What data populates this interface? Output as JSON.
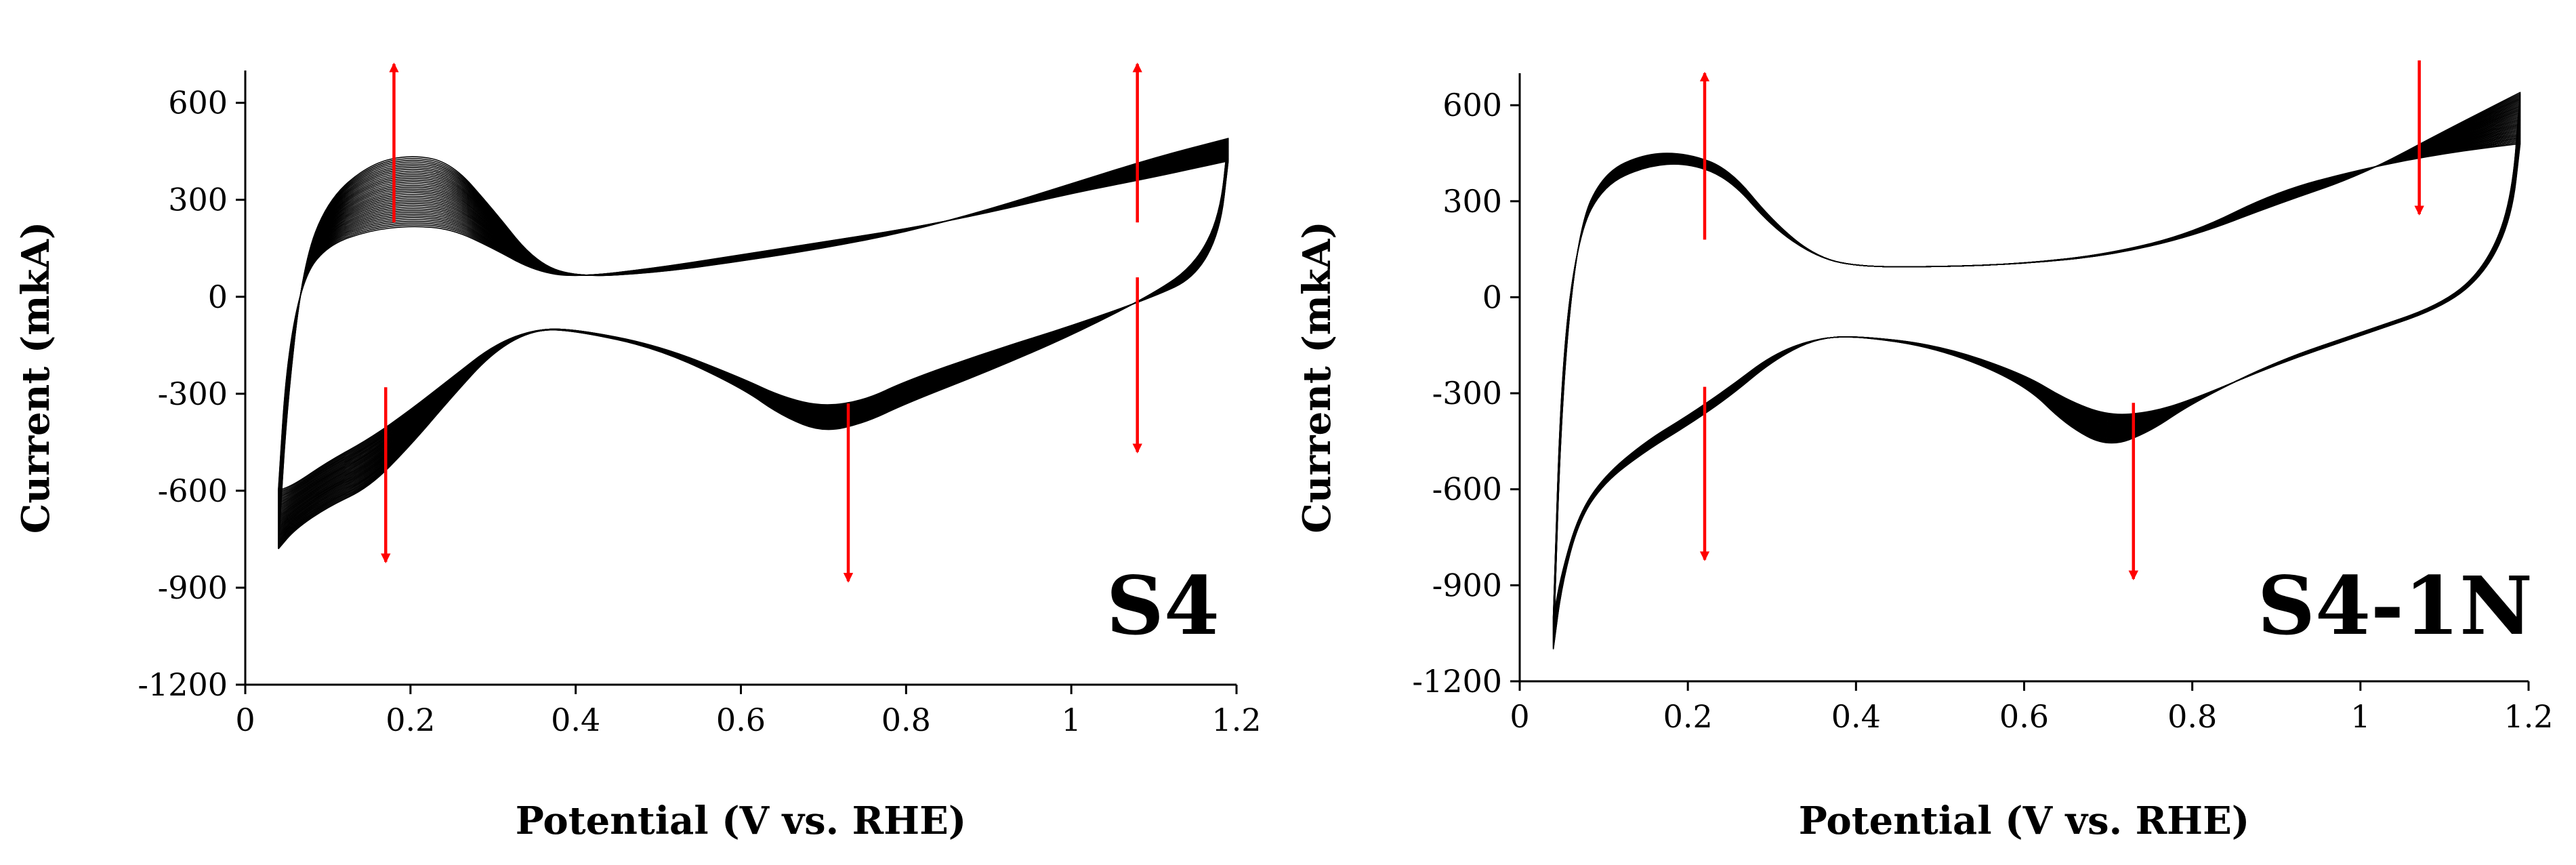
{
  "chart_data": [
    {
      "type": "line",
      "label": "S4",
      "xlabel": "Potential (V vs. RHE)",
      "ylabel": "Current (mkA)",
      "xlim": [
        0,
        1.2
      ],
      "ylim": [
        -1200,
        700
      ],
      "x_ticks": [
        0,
        0.2,
        0.4,
        0.6,
        0.8,
        1,
        1.2
      ],
      "x_tick_labels": [
        "0",
        "0.2",
        "0.4",
        "0.6",
        "0.8",
        "1",
        "1.2"
      ],
      "y_ticks": [
        600,
        300,
        0,
        -300,
        -600,
        -900,
        -1200
      ],
      "y_tick_labels": [
        "600",
        "300",
        "0",
        "-300",
        "-600",
        "-900",
        "-1200"
      ],
      "grid": false,
      "cycles": 40,
      "cycle_band": {
        "first": {
          "anodic": [
            [
              0.04,
              -600
            ],
            [
              0.05,
              -200
            ],
            [
              0.07,
              60
            ],
            [
              0.1,
              160
            ],
            [
              0.15,
              205
            ],
            [
              0.2,
              220
            ],
            [
              0.25,
              210
            ],
            [
              0.3,
              150
            ],
            [
              0.35,
              80
            ],
            [
              0.4,
              60
            ],
            [
              0.5,
              90
            ],
            [
              0.6,
              130
            ],
            [
              0.7,
              170
            ],
            [
              0.8,
              210
            ],
            [
              0.9,
              260
            ],
            [
              1.0,
              320
            ],
            [
              1.1,
              370
            ],
            [
              1.19,
              420
            ]
          ],
          "cathodic": [
            [
              1.19,
              420
            ],
            [
              1.18,
              200
            ],
            [
              1.15,
              60
            ],
            [
              1.1,
              0
            ],
            [
              1.0,
              -90
            ],
            [
              0.9,
              -170
            ],
            [
              0.8,
              -260
            ],
            [
              0.75,
              -320
            ],
            [
              0.7,
              -340
            ],
            [
              0.65,
              -310
            ],
            [
              0.6,
              -250
            ],
            [
              0.5,
              -150
            ],
            [
              0.4,
              -100
            ],
            [
              0.35,
              -100
            ],
            [
              0.3,
              -150
            ],
            [
              0.25,
              -250
            ],
            [
              0.2,
              -350
            ],
            [
              0.15,
              -440
            ],
            [
              0.1,
              -510
            ],
            [
              0.06,
              -580
            ],
            [
              0.04,
              -600
            ]
          ]
        },
        "last": {
          "anodic": [
            [
              0.04,
              -780
            ],
            [
              0.05,
              -350
            ],
            [
              0.07,
              100
            ],
            [
              0.1,
              300
            ],
            [
              0.15,
              410
            ],
            [
              0.2,
              440
            ],
            [
              0.25,
              415
            ],
            [
              0.3,
              270
            ],
            [
              0.35,
              110
            ],
            [
              0.4,
              60
            ],
            [
              0.5,
              75
            ],
            [
              0.6,
              110
            ],
            [
              0.7,
              150
            ],
            [
              0.8,
              200
            ],
            [
              0.9,
              270
            ],
            [
              1.0,
              350
            ],
            [
              1.1,
              430
            ],
            [
              1.19,
              490
            ]
          ],
          "cathodic": [
            [
              1.19,
              490
            ],
            [
              1.18,
              250
            ],
            [
              1.15,
              100
            ],
            [
              1.1,
              10
            ],
            [
              1.0,
              -120
            ],
            [
              0.9,
              -230
            ],
            [
              0.8,
              -330
            ],
            [
              0.75,
              -390
            ],
            [
              0.7,
              -420
            ],
            [
              0.65,
              -370
            ],
            [
              0.6,
              -280
            ],
            [
              0.5,
              -160
            ],
            [
              0.4,
              -105
            ],
            [
              0.35,
              -100
            ],
            [
              0.3,
              -170
            ],
            [
              0.25,
              -310
            ],
            [
              0.2,
              -460
            ],
            [
              0.15,
              -590
            ],
            [
              0.1,
              -650
            ],
            [
              0.06,
              -720
            ],
            [
              0.04,
              -780
            ]
          ]
        }
      },
      "arrows": [
        {
          "x": 0.18,
          "from": 230,
          "to": 720
        },
        {
          "x": 1.08,
          "from": 230,
          "to": 720
        },
        {
          "x": 0.17,
          "from": -280,
          "to": -820
        },
        {
          "x": 0.73,
          "from": -330,
          "to": -880
        },
        {
          "x": 1.08,
          "from": 60,
          "to": -480
        }
      ],
      "arrow_color": "#ff0000",
      "line_color": "#000000"
    },
    {
      "type": "line",
      "label": "S4-1N",
      "xlabel": "Potential (V vs. RHE)",
      "ylabel": "Current (mkA)",
      "xlim": [
        0,
        1.2
      ],
      "ylim": [
        -1200,
        700
      ],
      "x_ticks": [
        0,
        0.2,
        0.4,
        0.6,
        0.8,
        1,
        1.2
      ],
      "x_tick_labels": [
        "0",
        "0.2",
        "0.4",
        "0.6",
        "0.8",
        "1",
        "1.2"
      ],
      "y_ticks": [
        600,
        300,
        0,
        -300,
        -600,
        -900,
        -1200
      ],
      "y_tick_labels": [
        "600",
        "300",
        "0",
        "-300",
        "-600",
        "-900",
        "-1200"
      ],
      "grid": false,
      "cycles": 40,
      "cycle_band": {
        "first": {
          "anodic": [
            [
              0.04,
              -1000
            ],
            [
              0.05,
              -200
            ],
            [
              0.07,
              200
            ],
            [
              0.1,
              350
            ],
            [
              0.15,
              410
            ],
            [
              0.2,
              420
            ],
            [
              0.25,
              370
            ],
            [
              0.3,
              220
            ],
            [
              0.35,
              130
            ],
            [
              0.4,
              95
            ],
            [
              0.5,
              95
            ],
            [
              0.6,
              105
            ],
            [
              0.7,
              135
            ],
            [
              0.8,
              200
            ],
            [
              0.9,
              330
            ],
            [
              1.0,
              400
            ],
            [
              1.1,
              450
            ],
            [
              1.19,
              480
            ]
          ],
          "cathodic": [
            [
              1.19,
              480
            ],
            [
              1.18,
              250
            ],
            [
              1.15,
              80
            ],
            [
              1.1,
              -30
            ],
            [
              1.0,
              -120
            ],
            [
              0.9,
              -210
            ],
            [
              0.8,
              -320
            ],
            [
              0.75,
              -360
            ],
            [
              0.7,
              -370
            ],
            [
              0.65,
              -320
            ],
            [
              0.6,
              -240
            ],
            [
              0.5,
              -150
            ],
            [
              0.4,
              -120
            ],
            [
              0.35,
              -130
            ],
            [
              0.3,
              -180
            ],
            [
              0.25,
              -280
            ],
            [
              0.2,
              -370
            ],
            [
              0.15,
              -450
            ],
            [
              0.1,
              -560
            ],
            [
              0.07,
              -680
            ],
            [
              0.05,
              -860
            ],
            [
              0.04,
              -1000
            ]
          ]
        },
        "last": {
          "anodic": [
            [
              0.04,
              -1100
            ],
            [
              0.05,
              -300
            ],
            [
              0.07,
              220
            ],
            [
              0.1,
              390
            ],
            [
              0.15,
              450
            ],
            [
              0.2,
              450
            ],
            [
              0.25,
              400
            ],
            [
              0.3,
              240
            ],
            [
              0.35,
              130
            ],
            [
              0.4,
              95
            ],
            [
              0.5,
              95
            ],
            [
              0.6,
              105
            ],
            [
              0.7,
              130
            ],
            [
              0.8,
              190
            ],
            [
              0.9,
              290
            ],
            [
              1.0,
              380
            ],
            [
              1.1,
              520
            ],
            [
              1.19,
              640
            ]
          ],
          "cathodic": [
            [
              1.19,
              640
            ],
            [
              1.18,
              300
            ],
            [
              1.15,
              100
            ],
            [
              1.1,
              -20
            ],
            [
              1.0,
              -110
            ],
            [
              0.9,
              -200
            ],
            [
              0.8,
              -330
            ],
            [
              0.75,
              -420
            ],
            [
              0.7,
              -470
            ],
            [
              0.65,
              -400
            ],
            [
              0.6,
              -270
            ],
            [
              0.5,
              -160
            ],
            [
              0.4,
              -120
            ],
            [
              0.35,
              -130
            ],
            [
              0.3,
              -200
            ],
            [
              0.25,
              -310
            ],
            [
              0.2,
              -400
            ],
            [
              0.15,
              -480
            ],
            [
              0.1,
              -580
            ],
            [
              0.07,
              -700
            ],
            [
              0.05,
              -900
            ],
            [
              0.04,
              -1100
            ]
          ]
        }
      },
      "arrows": [
        {
          "x": 0.22,
          "from": 180,
          "to": 700
        },
        {
          "x": 0.22,
          "from": -280,
          "to": -820
        },
        {
          "x": 0.73,
          "from": -330,
          "to": -880
        },
        {
          "x": 1.07,
          "from": 740,
          "to": 260
        }
      ],
      "arrow_color": "#ff0000",
      "line_color": "#000000"
    }
  ]
}
